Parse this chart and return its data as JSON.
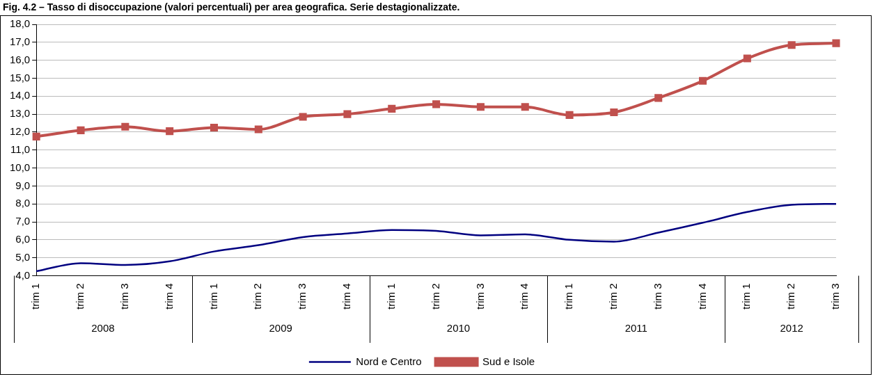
{
  "chart_data": {
    "type": "line",
    "title": "Fig. 4.2 – Tasso di disoccupazione (valori percentuali) per area geografica. Serie destagionalizzate.",
    "categories": [
      "trim 1",
      "trim 2",
      "trim 3",
      "trim 4",
      "trim 1",
      "trim 2",
      "trim 3",
      "trim 4",
      "trim 1",
      "trim 2",
      "trim 3",
      "trim 4",
      "trim 1",
      "trim 2",
      "trim 3",
      "trim 4",
      "trim 1",
      "trim 2",
      "trim 3"
    ],
    "annotations": [
      "2008",
      "2009",
      "2010",
      "2011",
      "2012"
    ],
    "series": [
      {
        "name": "Nord e Centro",
        "color": "#000080",
        "marker": "none",
        "values": [
          4.25,
          4.7,
          4.6,
          4.8,
          5.35,
          5.7,
          6.15,
          6.35,
          6.55,
          6.5,
          6.25,
          6.3,
          6.0,
          5.9,
          6.4,
          6.95,
          7.55,
          7.95,
          8.0
        ]
      },
      {
        "name": "Sud e Isole",
        "color": "#c0504d",
        "marker": "square",
        "values": [
          11.75,
          12.1,
          12.3,
          12.05,
          12.25,
          12.15,
          12.85,
          13.0,
          13.3,
          13.55,
          13.4,
          13.4,
          12.95,
          13.1,
          13.9,
          14.85,
          16.1,
          16.85,
          16.95
        ]
      }
    ],
    "ylim": [
      4,
      18
    ],
    "yticks": [
      {
        "value": 4,
        "label": "4,0"
      },
      {
        "value": 5,
        "label": "5,0"
      },
      {
        "value": 6,
        "label": "6,0"
      },
      {
        "value": 7,
        "label": "7,0"
      },
      {
        "value": 8,
        "label": "8,0"
      },
      {
        "value": 9,
        "label": "9,0"
      },
      {
        "value": 10,
        "label": "10,0"
      },
      {
        "value": 11,
        "label": "11,0"
      },
      {
        "value": 12,
        "label": "12,0"
      },
      {
        "value": 13,
        "label": "13,0"
      },
      {
        "value": 14,
        "label": "14,0"
      },
      {
        "value": 15,
        "label": "15,0"
      },
      {
        "value": 16,
        "label": "16,0"
      },
      {
        "value": 17,
        "label": "17,0"
      },
      {
        "value": 18,
        "label": "18,0"
      }
    ],
    "grid": "y",
    "legend": "bottom"
  }
}
